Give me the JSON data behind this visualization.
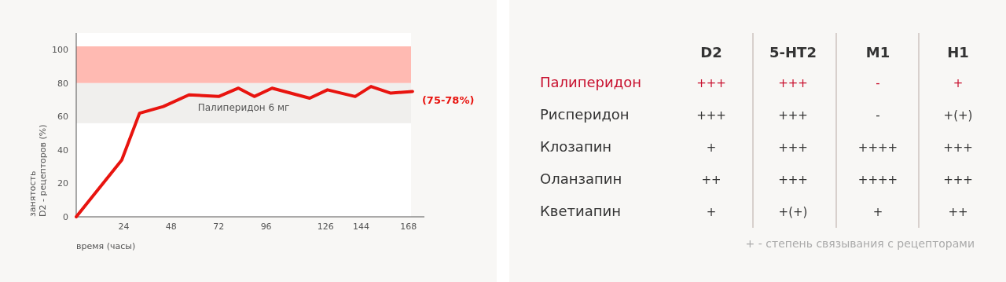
{
  "chart_data": [
    {
      "type": "line",
      "xlabel": "время (часы)",
      "ylabel": "занятость\nD2 - рецепторов (%)",
      "x": [
        0,
        23,
        32,
        44,
        57,
        72,
        82,
        90,
        99,
        118,
        127,
        141,
        149,
        159,
        170
      ],
      "series": [
        {
          "color": "#e8140f",
          "values": [
            0,
            34,
            62,
            66,
            73,
            72,
            77,
            72,
            77,
            71,
            76,
            72,
            78,
            74,
            75
          ]
        }
      ],
      "xlim": [
        0,
        176
      ],
      "xticks": [
        24,
        48,
        72,
        96,
        126,
        144,
        168
      ],
      "ylim": [
        0,
        110
      ],
      "yticks": [
        0,
        20,
        40,
        60,
        80,
        100
      ],
      "bands": [
        {
          "axis": "y",
          "from": 80,
          "to": 102,
          "label": null,
          "color": "#ffbab2"
        },
        {
          "axis": "y",
          "from": 56,
          "to": 80,
          "label": "Палиперидон 6 мг",
          "color": "#f0efed"
        }
      ],
      "annotations": [
        {
          "text": "(75-78%)",
          "x": 170,
          "y": 75
        }
      ],
      "grid": false,
      "marker": "none",
      "line_style": "solid"
    },
    {
      "type": "other",
      "categories": [
        "D2",
        "5-HT2",
        "M1",
        "H1"
      ],
      "series": [
        {
          "name": "Палиперидон",
          "color": "#c8102e",
          "values": [
            null,
            null,
            null,
            null
          ],
          "value_labels": [
            "+++",
            "+++",
            "-",
            "+"
          ]
        },
        {
          "name": "Рисперидон",
          "color": "#333333",
          "values": [
            null,
            null,
            null,
            null
          ],
          "value_labels": [
            "+++",
            "+++",
            "-",
            "+(+)"
          ]
        },
        {
          "name": "Клозапин",
          "color": "#333333",
          "values": [
            null,
            null,
            null,
            null
          ],
          "value_labels": [
            "+",
            "+++",
            "++++",
            "+++"
          ]
        },
        {
          "name": "Оланзапин",
          "color": "#333333",
          "values": [
            null,
            null,
            null,
            null
          ],
          "value_labels": [
            "++",
            "+++",
            "++++",
            "+++"
          ]
        },
        {
          "name": "Кветиапин",
          "color": "#333333",
          "values": [
            null,
            null,
            null,
            null
          ],
          "value_labels": [
            "+",
            "+(+)",
            "+",
            "++"
          ]
        }
      ],
      "annotations": [
        "+ - степень связывания с рецепторами"
      ]
    }
  ]
}
